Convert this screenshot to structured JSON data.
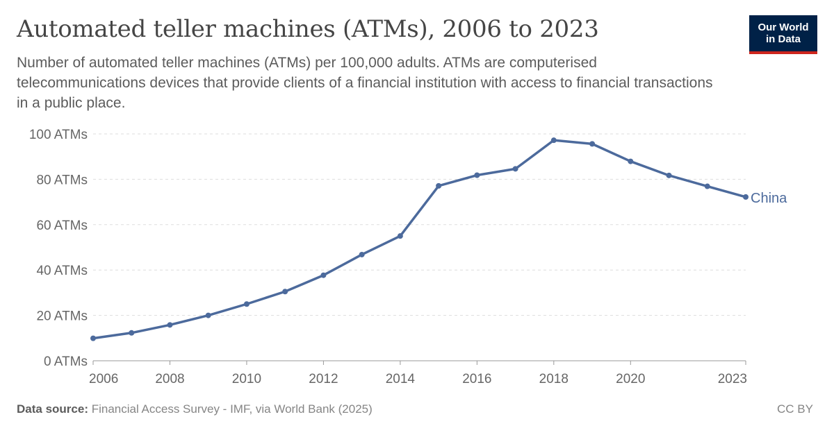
{
  "header": {
    "title": "Automated teller machines (ATMs), 2006 to 2023",
    "subtitle": "Number of automated teller machines (ATMs) per 100,000 adults. ATMs are computerised telecommunications devices that provide clients of a financial institution with access to financial transactions in a public place."
  },
  "logo": {
    "line1": "Our World",
    "line2": "in Data"
  },
  "footer": {
    "source_label": "Data source:",
    "source_text": "Financial Access Survey - IMF, via World Bank (2025)",
    "license": "CC BY"
  },
  "colors": {
    "series": "#4c6a9c",
    "grid": "#dddddd",
    "axis": "#666666"
  },
  "chart_data": {
    "type": "line",
    "title": "Automated teller machines (ATMs), 2006 to 2023",
    "xlabel": "",
    "ylabel": "",
    "x": [
      2006,
      2007,
      2008,
      2009,
      2010,
      2011,
      2012,
      2013,
      2014,
      2015,
      2016,
      2017,
      2018,
      2019,
      2020,
      2021,
      2022,
      2023
    ],
    "series": [
      {
        "name": "China",
        "values": [
          9.9,
          12.3,
          15.8,
          20.0,
          25.0,
          30.5,
          37.7,
          46.8,
          55.0,
          77.1,
          81.8,
          84.6,
          97.2,
          95.6,
          87.9,
          81.7,
          76.9,
          72.2
        ]
      }
    ],
    "xlim": [
      2006,
      2023
    ],
    "ylim": [
      0,
      100
    ],
    "x_ticks": [
      {
        "value": 2006,
        "label": "2006"
      },
      {
        "value": 2008,
        "label": "2008"
      },
      {
        "value": 2010,
        "label": "2010"
      },
      {
        "value": 2012,
        "label": "2012"
      },
      {
        "value": 2014,
        "label": "2014"
      },
      {
        "value": 2016,
        "label": "2016"
      },
      {
        "value": 2018,
        "label": "2018"
      },
      {
        "value": 2020,
        "label": "2020"
      },
      {
        "value": 2023,
        "label": "2023"
      }
    ],
    "y_ticks": [
      {
        "value": 0,
        "label": "0 ATMs"
      },
      {
        "value": 20,
        "label": "20 ATMs"
      },
      {
        "value": 40,
        "label": "40 ATMs"
      },
      {
        "value": 60,
        "label": "60 ATMs"
      },
      {
        "value": 80,
        "label": "80 ATMs"
      },
      {
        "value": 100,
        "label": "100 ATMs"
      }
    ],
    "grid": true,
    "legend": "end-of-line label"
  }
}
